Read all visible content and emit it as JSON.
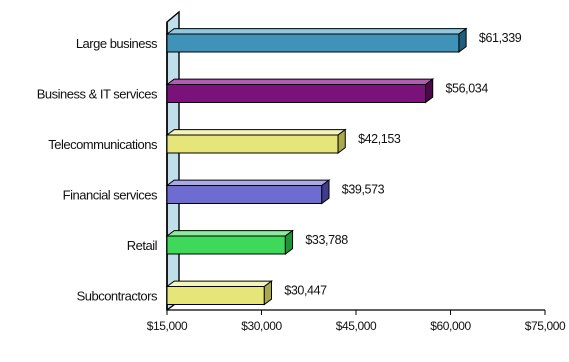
{
  "chart_data": {
    "type": "bar",
    "orientation": "horizontal",
    "style": "3d",
    "title": "",
    "xlabel": "",
    "ylabel": "",
    "categories": [
      "Large business",
      "Business & IT services",
      "Telecommunications",
      "Financial services",
      "Retail",
      "Subcontractors"
    ],
    "values": [
      61339,
      56034,
      42153,
      39573,
      33788,
      30447
    ],
    "value_labels": [
      "$61,339",
      "$56,034",
      "$42,153",
      "$39,573",
      "$33,788",
      "$30,447"
    ],
    "xlim": [
      15000,
      75000
    ],
    "x_ticks": [
      15000,
      30000,
      45000,
      60000,
      75000
    ],
    "x_tick_labels": [
      "$15,000",
      "$30,000",
      "$45,000",
      "$60,000",
      "$75,000"
    ],
    "grid": false,
    "legend": "none",
    "colors": {
      "bars": [
        "#3f93b8",
        "#7a1279",
        "#e6e57a",
        "#6e6cd0",
        "#3ed85a",
        "#e6e57a"
      ],
      "bars_top": [
        "#8fc8df",
        "#b15cb0",
        "#f4f3b8",
        "#a9a8ea",
        "#8cec9d",
        "#f4f3b8"
      ],
      "bars_side": [
        "#1f5e7a",
        "#4a0a4a",
        "#a9a84a",
        "#3f3d8e",
        "#1f9434",
        "#a9a84a"
      ],
      "wall": "#bfe0ea",
      "wall_side": "#7fb2c2",
      "axis": "#000000"
    }
  }
}
